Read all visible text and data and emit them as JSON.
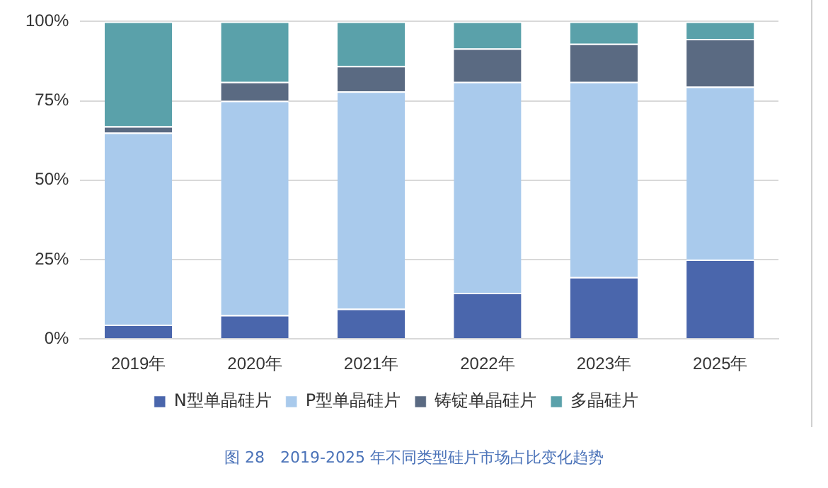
{
  "chart_data": {
    "type": "bar",
    "stacked": true,
    "categories": [
      "2019年",
      "2020年",
      "2021年",
      "2022年",
      "2023年",
      "2025年"
    ],
    "series": [
      {
        "name": "N型单晶硅片",
        "color": "#4a66ac",
        "values": [
          4.5,
          7.5,
          9.5,
          14.5,
          19.5,
          25
        ]
      },
      {
        "name": "P型单晶硅片",
        "color": "#a9caec",
        "values": [
          60.5,
          67.5,
          68.5,
          66.5,
          61.5,
          54.5
        ]
      },
      {
        "name": "铸锭单晶硅片",
        "color": "#5a6a82",
        "values": [
          2,
          6,
          8,
          10.5,
          12,
          15
        ]
      },
      {
        "name": "多晶硅片",
        "color": "#5aa1aa",
        "values": [
          33,
          19,
          14,
          8.5,
          7,
          5.5
        ]
      }
    ],
    "ylim": [
      0,
      100
    ],
    "yticks": [
      {
        "value": 0,
        "label": "0%"
      },
      {
        "value": 25,
        "label": "25%"
      },
      {
        "value": 50,
        "label": "50%"
      },
      {
        "value": 75,
        "label": "75%"
      },
      {
        "value": 100,
        "label": "100%"
      }
    ],
    "grid": "y",
    "legend": "bottom",
    "annotations": [
      "图 28　2019-2025 年不同类型硅片市场占比变化趋势"
    ]
  }
}
